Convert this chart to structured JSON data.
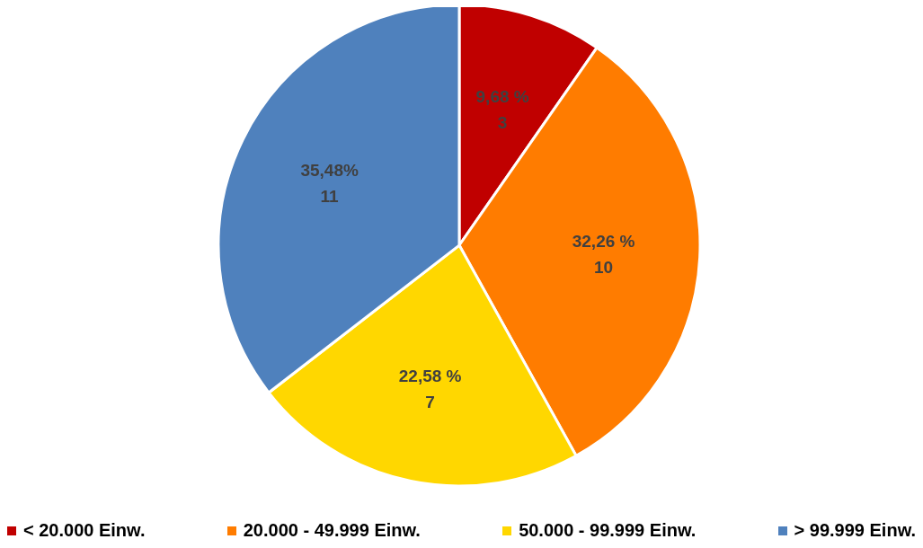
{
  "chart_data": {
    "type": "pie",
    "categories": [
      "< 20.000 Einw.",
      "20.000 - 49.999 Einw.",
      "50.000 - 99.999 Einw.",
      "> 99.999 Einw."
    ],
    "values": [
      3,
      10,
      7,
      11
    ],
    "colors": [
      "#c00000",
      "#ff7c00",
      "#ffd700",
      "#4f81bd"
    ],
    "value_labels": [
      "9,68 %\n3",
      "32,26 %\n10",
      "22,58 %\n7",
      "35,48%\n11"
    ],
    "legend": "bottom"
  }
}
